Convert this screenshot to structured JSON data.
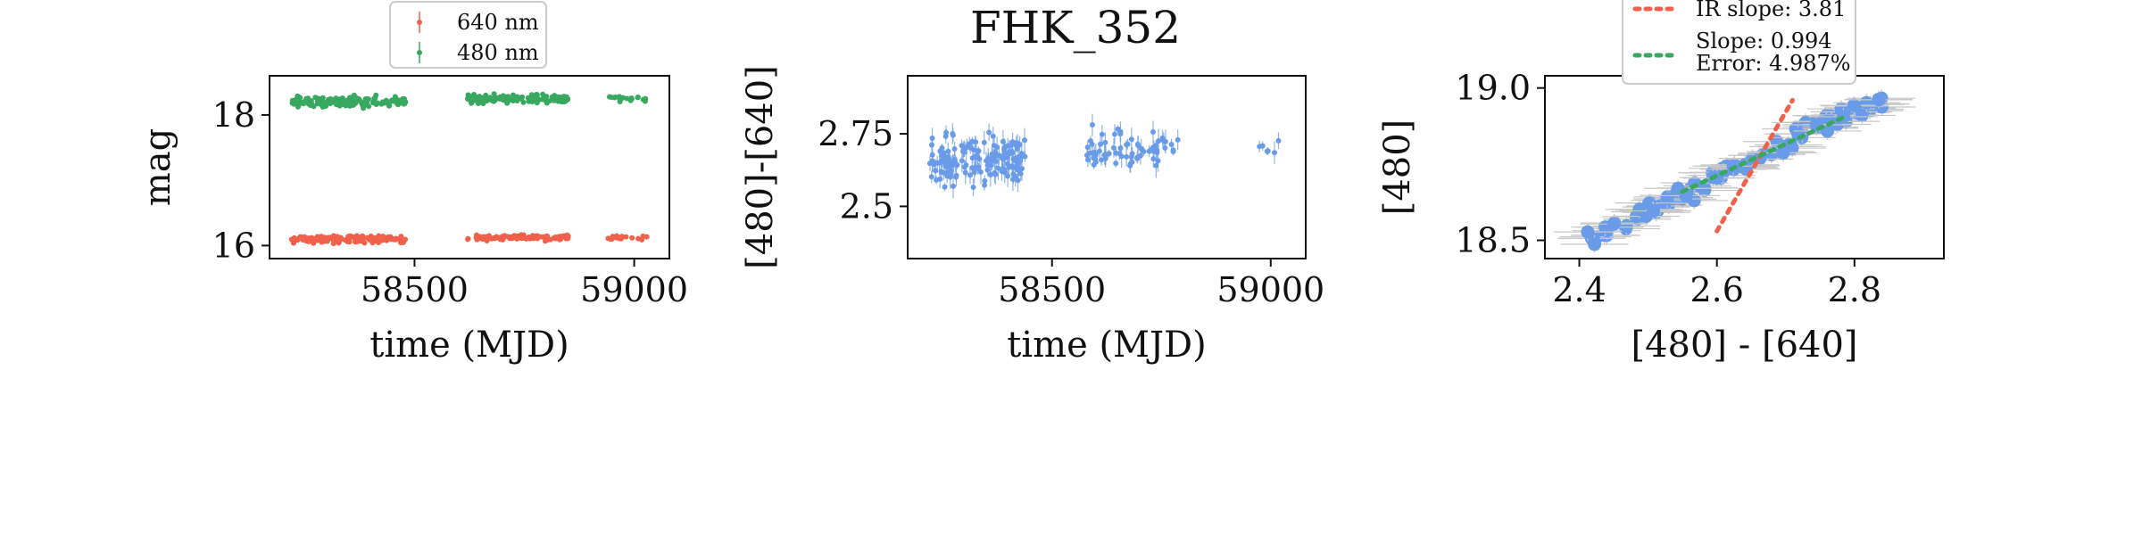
{
  "figure": {
    "title": "FHK_352"
  },
  "chart_data": [
    {
      "type": "scatter",
      "panel": "light-curve",
      "xlabel": "time (MJD)",
      "ylabel": "mag",
      "xlim": [
        58170,
        59080
      ],
      "ylim": [
        18.6,
        15.8
      ],
      "y_inverted": true,
      "xticks": [
        58500,
        59000
      ],
      "yticks": [
        16,
        18
      ],
      "legend_position": "top-center",
      "series": [
        {
          "name": "640 nm",
          "color": "#f0604a",
          "clusters": [
            {
              "x_range": [
                58220,
                58480
              ],
              "y_center": 16.1,
              "spread": 0.08,
              "count": 120
            },
            {
              "x_range": [
                58620,
                58850
              ],
              "y_center": 16.12,
              "spread": 0.06,
              "count": 110
            },
            {
              "x_range": [
                58940,
                59030
              ],
              "y_center": 16.12,
              "spread": 0.05,
              "count": 20
            }
          ]
        },
        {
          "name": "480 nm",
          "color": "#38a860",
          "clusters": [
            {
              "x_range": [
                58220,
                58480
              ],
              "y_center": 18.2,
              "spread": 0.12,
              "count": 150
            },
            {
              "x_range": [
                58620,
                58850
              ],
              "y_center": 18.25,
              "spread": 0.1,
              "count": 120
            },
            {
              "x_range": [
                58940,
                59030
              ],
              "y_center": 18.25,
              "spread": 0.08,
              "count": 20
            }
          ]
        }
      ]
    },
    {
      "type": "scatter",
      "panel": "color-curve",
      "title": "FHK_352",
      "xlabel": "time (MJD)",
      "ylabel": "[480]-[640]",
      "xlim": [
        58170,
        59080
      ],
      "ylim": [
        2.95,
        2.32
      ],
      "y_inverted": true,
      "xticks": [
        58500,
        59000
      ],
      "yticks": [
        2.5,
        2.75
      ],
      "series": [
        {
          "name": "",
          "color": "#6a9be8",
          "clusters": [
            {
              "x_range": [
                58220,
                58440
              ],
              "y_center": 2.66,
              "spread": 0.12,
              "count": 160
            },
            {
              "x_range": [
                58580,
                58790
              ],
              "y_center": 2.7,
              "spread": 0.09,
              "count": 70
            },
            {
              "x_range": [
                58970,
                59030
              ],
              "y_center": 2.7,
              "spread": 0.05,
              "count": 6
            }
          ]
        }
      ]
    },
    {
      "type": "scatter",
      "panel": "color-magnitude",
      "xlabel": "[480] - [640]",
      "ylabel": "[480]",
      "xlim": [
        2.35,
        2.93
      ],
      "ylim": [
        19.04,
        18.44
      ],
      "y_inverted": true,
      "xticks": [
        2.4,
        2.6,
        2.8
      ],
      "xtick_labels": [
        "2.4",
        "2.6",
        "2.8"
      ],
      "yticks": [
        18.5,
        19.0
      ],
      "ytick_labels": [
        "18.5",
        "19.0"
      ],
      "legend_position": "top-center",
      "points": {
        "color": "#6a9be8",
        "x_range": [
          2.41,
          2.85
        ],
        "y_at_x_min": 18.5,
        "y_at_x_max": 18.98,
        "count": 120
      },
      "series": [
        {
          "name": "IR slope: 3.81",
          "color": "#f0604a",
          "style": "dotted",
          "x": [
            2.6,
            2.71
          ],
          "y": [
            18.53,
            18.96
          ]
        },
        {
          "name": "Slope: 0.994",
          "detail": "Error: 4.987%",
          "color": "#38a860",
          "style": "dotted",
          "x": [
            2.55,
            2.79
          ],
          "y": [
            18.66,
            18.91
          ]
        }
      ]
    }
  ]
}
